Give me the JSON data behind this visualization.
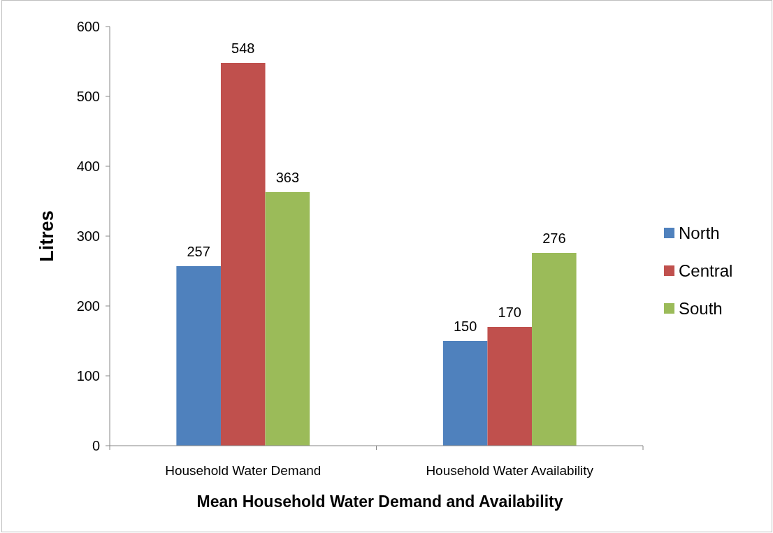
{
  "chart_data": {
    "type": "bar",
    "xlabel": "Mean Household Water Demand and Availability",
    "ylabel": "Litres",
    "categories": [
      "Household Water Demand",
      "Household Water Availability"
    ],
    "series": [
      {
        "name": "North",
        "color": "#4f81bd",
        "values": [
          257,
          150
        ]
      },
      {
        "name": "Central",
        "color": "#c0504d",
        "values": [
          548,
          170
        ]
      },
      {
        "name": "South",
        "color": "#9bbb59",
        "values": [
          363,
          276
        ]
      }
    ],
    "ylim": [
      0,
      600
    ],
    "yticks": [
      0,
      100,
      200,
      300,
      400,
      500,
      600
    ],
    "data_labels": true,
    "legend": "right",
    "grid": false
  }
}
